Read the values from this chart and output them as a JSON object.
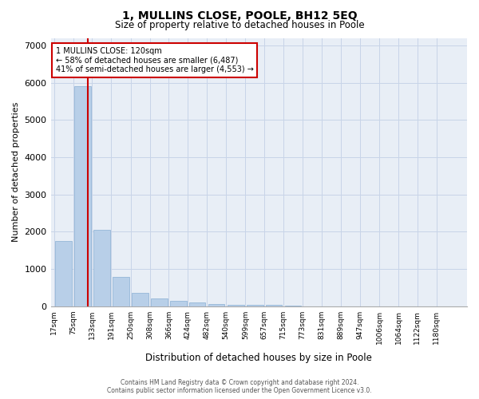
{
  "title": "1, MULLINS CLOSE, POOLE, BH12 5EQ",
  "subtitle": "Size of property relative to detached houses in Poole",
  "xlabel": "Distribution of detached houses by size in Poole",
  "ylabel": "Number of detached properties",
  "bar_color": "#b8cfe8",
  "bar_edge_color": "#8aafd4",
  "grid_color": "#c8d4e8",
  "background_color": "#e8eef6",
  "subject_line_color": "#cc0000",
  "subject_sqm": 120,
  "annotation_text": "1 MULLINS CLOSE: 120sqm\n← 58% of detached houses are smaller (6,487)\n41% of semi-detached houses are larger (4,553) →",
  "bin_labels": [
    "17sqm",
    "75sqm",
    "133sqm",
    "191sqm",
    "250sqm",
    "308sqm",
    "366sqm",
    "424sqm",
    "482sqm",
    "540sqm",
    "599sqm",
    "657sqm",
    "715sqm",
    "773sqm",
    "831sqm",
    "889sqm",
    "947sqm",
    "1006sqm",
    "1064sqm",
    "1122sqm",
    "1180sqm"
  ],
  "bin_centers": [
    46,
    104,
    162,
    220,
    279,
    337,
    395,
    453,
    511,
    569.5,
    628,
    686,
    744,
    802,
    860,
    918,
    976,
    1035,
    1093,
    1151,
    1209
  ],
  "bin_edges": [
    17,
    75,
    133,
    191,
    250,
    308,
    366,
    424,
    482,
    540,
    599,
    657,
    715,
    773,
    831,
    889,
    947,
    1006,
    1064,
    1122,
    1180,
    1238
  ],
  "bar_heights": [
    1750,
    5900,
    2050,
    780,
    370,
    220,
    150,
    100,
    70,
    50,
    50,
    40,
    30,
    0,
    0,
    0,
    0,
    0,
    0,
    0,
    0
  ],
  "ylim": [
    0,
    7200
  ],
  "yticks": [
    0,
    1000,
    2000,
    3000,
    4000,
    5000,
    6000,
    7000
  ],
  "footer_line1": "Contains HM Land Registry data © Crown copyright and database right 2024.",
  "footer_line2": "Contains public sector information licensed under the Open Government Licence v3.0."
}
